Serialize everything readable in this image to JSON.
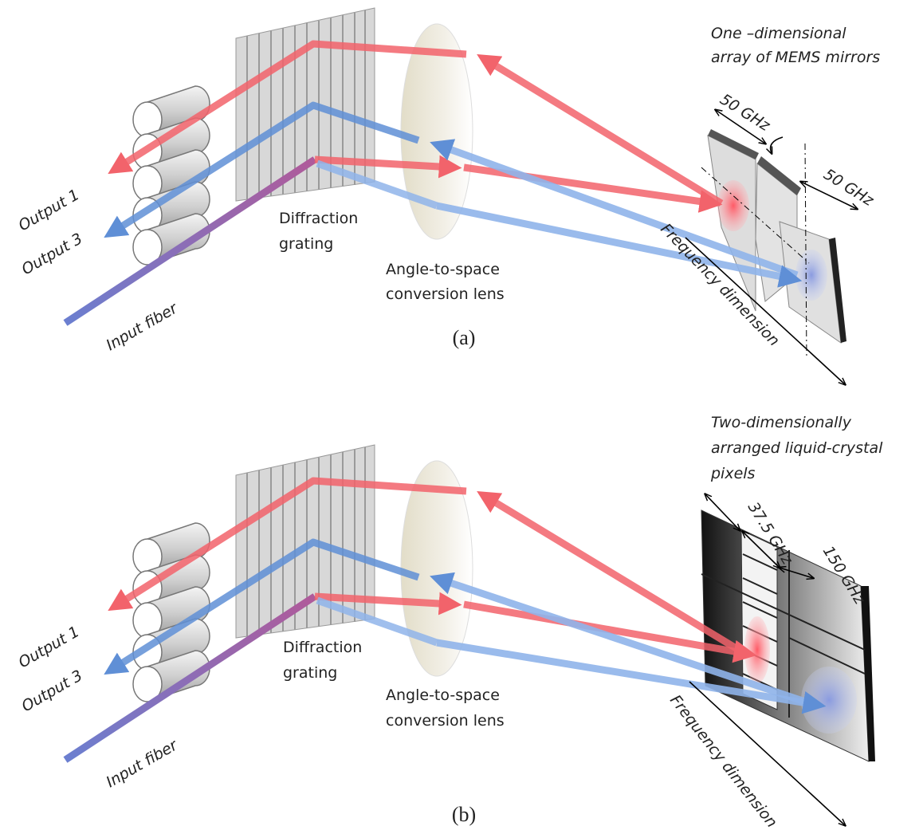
{
  "panels": [
    {
      "label": "(a)",
      "device_caption": [
        "One –dimensional",
        "array of MEMS mirrors"
      ],
      "bandwidths": [
        "50 GHz",
        "50 GHz"
      ],
      "output_1": "Output 1",
      "output_3": "Output 3",
      "input": "Input fiber",
      "grating": [
        "Diffraction",
        "grating"
      ],
      "lens": [
        "Angle-to-space",
        "conversion lens"
      ],
      "axis": "Frequency dimension"
    },
    {
      "label": "(b)",
      "device_caption": [
        "Two-dimensionally",
        "arranged liquid-crystal",
        "pixels"
      ],
      "bandwidths": [
        "37.5 GHz",
        "150 GHz"
      ],
      "output_1": "Output 1",
      "output_3": "Output 3",
      "input": "Input fiber",
      "grating": [
        "Diffraction",
        "grating"
      ],
      "lens": [
        "Angle-to-space",
        "conversion lens"
      ],
      "axis": "Frequency dimension"
    }
  ]
}
